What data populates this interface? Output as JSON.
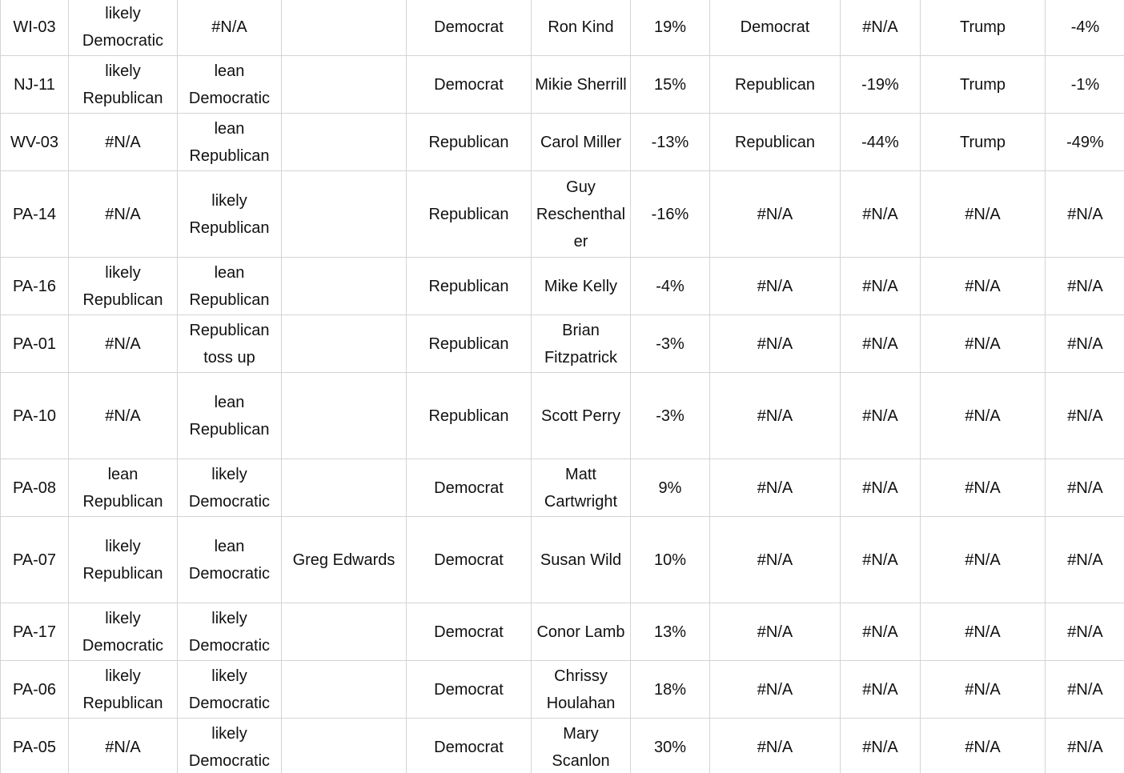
{
  "table": {
    "rows": [
      [
        "WI-03",
        "likely Democratic",
        "#N/A",
        null,
        "Democrat",
        "Ron Kind",
        "19%",
        "Democrat",
        "#N/A",
        "Trump",
        "-4%"
      ],
      [
        "NJ-11",
        "likely Republican",
        "lean Democratic",
        null,
        "Democrat",
        "Mikie Sherrill",
        "15%",
        "Republican",
        "-19%",
        "Trump",
        "-1%"
      ],
      [
        "WV-03",
        "#N/A",
        "lean Republican",
        null,
        "Republican",
        "Carol Miller",
        "-13%",
        "Republican",
        "-44%",
        "Trump",
        "-49%"
      ],
      [
        "PA-14",
        "#N/A",
        "likely Republican",
        null,
        "Republican",
        "Guy Reschenthaler",
        "-16%",
        "#N/A",
        "#N/A",
        "#N/A",
        "#N/A"
      ],
      [
        "PA-16",
        "likely Republican",
        "lean Republican",
        null,
        "Republican",
        "Mike Kelly",
        "-4%",
        "#N/A",
        "#N/A",
        "#N/A",
        "#N/A"
      ],
      [
        "PA-01",
        "#N/A",
        "Republican toss up",
        null,
        "Republican",
        "Brian Fitzpatrick",
        "-3%",
        "#N/A",
        "#N/A",
        "#N/A",
        "#N/A"
      ],
      [
        "PA-10",
        "#N/A",
        "lean Republican",
        null,
        "Republican",
        "Scott Perry",
        "-3%",
        "#N/A",
        "#N/A",
        "#N/A",
        "#N/A"
      ],
      [
        "PA-08",
        "lean Republican",
        "likely Democratic",
        null,
        "Democrat",
        "Matt Cartwright",
        "9%",
        "#N/A",
        "#N/A",
        "#N/A",
        "#N/A"
      ],
      [
        "PA-07",
        "likely Republican",
        "lean Democratic",
        "Greg Edwards",
        "Democrat",
        "Susan Wild",
        "10%",
        "#N/A",
        "#N/A",
        "#N/A",
        "#N/A"
      ],
      [
        "PA-17",
        "likely Democratic",
        "likely Democratic",
        null,
        "Democrat",
        "Conor Lamb",
        "13%",
        "#N/A",
        "#N/A",
        "#N/A",
        "#N/A"
      ],
      [
        "PA-06",
        "likely Republican",
        "likely Democratic",
        null,
        "Democrat",
        "Chrissy Houlahan",
        "18%",
        "#N/A",
        "#N/A",
        "#N/A",
        "#N/A"
      ],
      [
        "PA-05",
        "#N/A",
        "likely Democratic",
        null,
        "Democrat",
        "Mary Scanlon",
        "30%",
        "#N/A",
        "#N/A",
        "#N/A",
        "#N/A"
      ]
    ]
  }
}
